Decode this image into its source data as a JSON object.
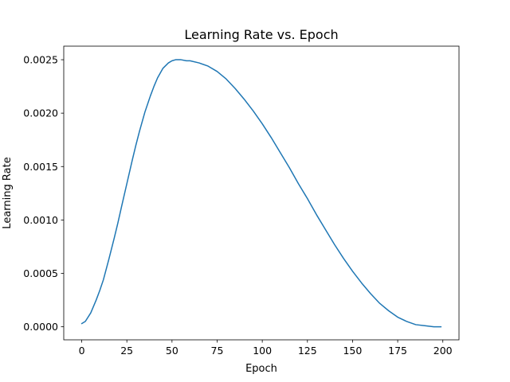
{
  "chart_data": {
    "type": "line",
    "title": "Learning Rate vs. Epoch",
    "xlabel": "Epoch",
    "ylabel": "Learning Rate",
    "xlim": [
      -9.95,
      208.95
    ],
    "ylim": [
      -0.000122,
      0.002627
    ],
    "xticks": [
      0,
      25,
      50,
      75,
      100,
      125,
      150,
      175,
      200
    ],
    "xtick_labels": [
      "0",
      "25",
      "50",
      "75",
      "100",
      "125",
      "150",
      "175",
      "200"
    ],
    "yticks": [
      0.0,
      0.0005,
      0.001,
      0.0015,
      0.002,
      0.0025
    ],
    "ytick_labels": [
      "0.0000",
      "0.0005",
      "0.0010",
      "0.0015",
      "0.0020",
      "0.0025"
    ],
    "grid": false,
    "series": [
      {
        "color": "#1f77b4",
        "x": [
          0,
          2,
          5,
          8,
          10,
          12,
          15,
          18,
          20,
          22,
          25,
          28,
          30,
          32,
          35,
          38,
          40,
          42,
          45,
          48,
          50,
          52,
          55,
          58,
          60,
          65,
          70,
          75,
          80,
          85,
          90,
          95,
          100,
          105,
          110,
          115,
          120,
          125,
          130,
          135,
          140,
          145,
          150,
          155,
          160,
          165,
          170,
          175,
          180,
          185,
          190,
          195,
          199
        ],
        "y": [
          3e-05,
          5e-05,
          0.00013,
          0.00025,
          0.00034,
          0.00044,
          0.00063,
          0.00083,
          0.00097,
          0.00112,
          0.00134,
          0.00156,
          0.0017,
          0.00183,
          0.00201,
          0.00216,
          0.00225,
          0.00233,
          0.00242,
          0.00247,
          0.00249,
          0.0025,
          0.0025,
          0.00249,
          0.00249,
          0.00247,
          0.00244,
          0.00239,
          0.00232,
          0.00223,
          0.00213,
          0.00202,
          0.0019,
          0.00177,
          0.00163,
          0.00149,
          0.00134,
          0.0012,
          0.00105,
          0.00091,
          0.00077,
          0.00064,
          0.00052,
          0.00041,
          0.00031,
          0.00022,
          0.00015,
          9e-05,
          5e-05,
          2e-05,
          1e-05,
          0.0,
          0.0
        ]
      }
    ]
  }
}
